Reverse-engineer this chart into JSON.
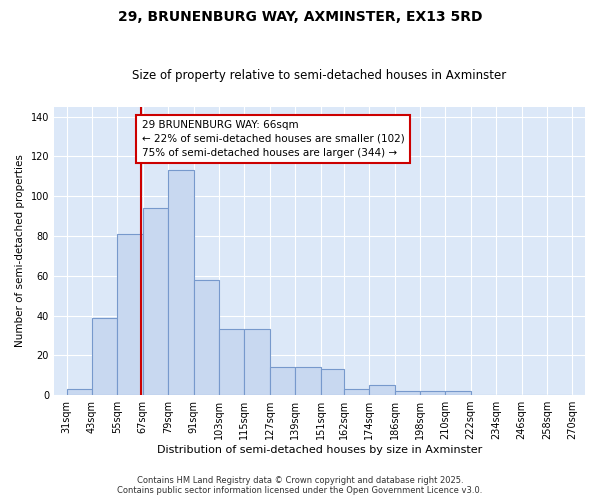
{
  "title1": "29, BRUNENBURG WAY, AXMINSTER, EX13 5RD",
  "title2": "Size of property relative to semi-detached houses in Axminster",
  "xlabel": "Distribution of semi-detached houses by size in Axminster",
  "ylabel": "Number of semi-detached properties",
  "bin_edges": [
    31,
    43,
    55,
    67,
    79,
    91,
    103,
    115,
    127,
    139,
    151,
    162,
    174,
    186,
    198,
    210,
    222,
    234,
    246,
    258,
    270
  ],
  "bar_heights": [
    3,
    39,
    81,
    94,
    113,
    58,
    33,
    33,
    14,
    14,
    13,
    3,
    5,
    2,
    2,
    2,
    0,
    0,
    0,
    0,
    1
  ],
  "bar_color": "#c8d8f0",
  "bar_edge_color": "#7799cc",
  "bar_linewidth": 0.8,
  "red_line_x": 66,
  "red_line_color": "#cc0000",
  "annotation_line1": "29 BRUNENBURG WAY: 66sqm",
  "annotation_line2": "← 22% of semi-detached houses are smaller (102)",
  "annotation_line3": "75% of semi-detached houses are larger (344) →",
  "ylim": [
    0,
    145
  ],
  "xlim": [
    25,
    276
  ],
  "fig_background_color": "#ffffff",
  "plot_background_color": "#dce8f8",
  "grid_color": "#ffffff",
  "footer_line1": "Contains HM Land Registry data © Crown copyright and database right 2025.",
  "footer_line2": "Contains public sector information licensed under the Open Government Licence v3.0.",
  "title1_fontsize": 10,
  "title2_fontsize": 8.5,
  "xlabel_fontsize": 8,
  "ylabel_fontsize": 7.5,
  "tick_fontsize": 7,
  "annotation_fontsize": 7.5,
  "footer_fontsize": 6
}
